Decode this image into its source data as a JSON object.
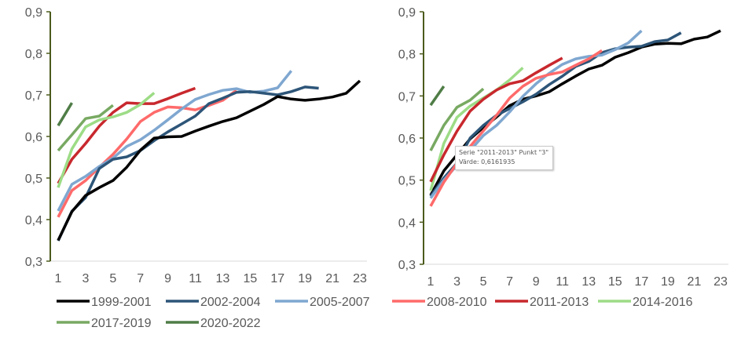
{
  "chart_data": [
    {
      "type": "line",
      "title": "",
      "xlabel": "",
      "ylabel": "",
      "ylim": [
        0.3,
        0.9
      ],
      "xlim": [
        1,
        23
      ],
      "yticks": [
        "0,3",
        "0,4",
        "0,5",
        "0,6",
        "0,7",
        "0,8",
        "0,9"
      ],
      "xticks": [
        "1",
        "3",
        "5",
        "7",
        "9",
        "11",
        "13",
        "15",
        "17",
        "19",
        "21",
        "23"
      ],
      "grid": false,
      "legend_position": "bottom",
      "legend": [
        "1999-2001",
        "2002-2004",
        "2005-2007",
        "2017-2019",
        "2020-2022"
      ],
      "series": [
        {
          "name": "2011-2013",
          "color": "#c8282d",
          "values": [
            0.487,
            0.545,
            0.583,
            0.625,
            0.658,
            0.681,
            0.679,
            0.679,
            0.691,
            0.704,
            0.716
          ]
        },
        {
          "name": "2008-2010",
          "color": "#ff6a6a",
          "values": [
            0.406,
            0.47,
            0.494,
            0.526,
            0.557,
            0.594,
            0.636,
            0.658,
            0.671,
            0.669,
            0.664,
            0.675,
            0.687,
            0.711
          ]
        },
        {
          "name": "2014-2016",
          "color": "#9ddc86",
          "values": [
            0.477,
            0.57,
            0.623,
            0.64,
            0.647,
            0.658,
            0.677,
            0.705
          ]
        },
        {
          "name": "2017-2019",
          "color": "#78a962",
          "values": [
            0.566,
            0.604,
            0.643,
            0.649,
            0.675
          ]
        },
        {
          "name": "2020-2022",
          "color": "#4f7d46",
          "values": [
            0.626,
            0.681
          ]
        },
        {
          "name": "2005-2007",
          "color": "#7fa7d0",
          "values": [
            0.421,
            0.485,
            0.504,
            0.528,
            0.548,
            0.576,
            0.592,
            0.615,
            0.64,
            0.666,
            0.689,
            0.701,
            0.711,
            0.715,
            0.706,
            0.709,
            0.717,
            0.758
          ]
        },
        {
          "name": "2002-2004",
          "color": "#2d5578",
          "values": [
            0.349,
            0.42,
            0.453,
            0.523,
            0.545,
            0.551,
            0.566,
            0.59,
            0.611,
            0.63,
            0.649,
            0.679,
            0.692,
            0.706,
            0.708,
            0.704,
            0.7,
            0.708,
            0.719,
            0.716
          ]
        },
        {
          "name": "1999-2001",
          "color": "#000000",
          "values": [
            0.35,
            0.419,
            0.458,
            0.477,
            0.494,
            0.526,
            0.567,
            0.596,
            0.599,
            0.6,
            0.613,
            0.625,
            0.636,
            0.645,
            0.661,
            0.677,
            0.696,
            0.69,
            0.687,
            0.69,
            0.695,
            0.704,
            0.734
          ]
        }
      ]
    },
    {
      "type": "line",
      "title": "",
      "xlabel": "",
      "ylabel": "",
      "ylim": [
        0.3,
        0.9
      ],
      "xlim": [
        1,
        23
      ],
      "yticks": [
        "0,3",
        "0,4",
        "0,5",
        "0,6",
        "0,7",
        "0,8",
        "0,9"
      ],
      "xticks": [
        "1",
        "3",
        "5",
        "7",
        "9",
        "11",
        "13",
        "15",
        "17",
        "19",
        "21",
        "23"
      ],
      "grid": false,
      "legend_position": "bottom",
      "legend": [
        "2008-2010",
        "2011-2013",
        "2014-2016"
      ],
      "series": [
        {
          "name": "1999-2001",
          "color": "#000000",
          "values": [
            0.464,
            0.522,
            0.56,
            0.598,
            0.625,
            0.65,
            0.677,
            0.692,
            0.7,
            0.71,
            0.729,
            0.747,
            0.764,
            0.773,
            0.792,
            0.803,
            0.816,
            0.823,
            0.825,
            0.824,
            0.835,
            0.84,
            0.855
          ]
        },
        {
          "name": "2002-2004",
          "color": "#2d5578",
          "values": [
            0.462,
            0.505,
            0.54,
            0.6,
            0.63,
            0.654,
            0.67,
            0.686,
            0.704,
            0.727,
            0.747,
            0.77,
            0.782,
            0.803,
            0.812,
            0.816,
            0.818,
            0.829,
            0.833,
            0.85
          ]
        },
        {
          "name": "2005-2007",
          "color": "#7fa7d0",
          "values": [
            0.457,
            0.5,
            0.535,
            0.57,
            0.606,
            0.63,
            0.662,
            0.699,
            0.729,
            0.754,
            0.775,
            0.788,
            0.794,
            0.797,
            0.81,
            0.826,
            0.855
          ]
        },
        {
          "name": "2008-2010",
          "color": "#ff6a6a",
          "values": [
            0.438,
            0.495,
            0.54,
            0.58,
            0.617,
            0.654,
            0.695,
            0.723,
            0.742,
            0.751,
            0.757,
            0.773,
            0.788,
            0.808
          ]
        },
        {
          "name": "2014-2016",
          "color": "#9ddc86",
          "values": [
            0.475,
            0.587,
            0.649,
            0.676,
            0.695,
            0.714,
            0.738,
            0.767
          ]
        },
        {
          "name": "2017-2019",
          "color": "#78a962",
          "values": [
            0.57,
            0.63,
            0.673,
            0.69,
            0.717
          ]
        },
        {
          "name": "2020-2022",
          "color": "#4f7d46",
          "values": [
            0.678,
            0.723
          ]
        },
        {
          "name": "2011-2013",
          "color": "#c8282d",
          "values": [
            0.496,
            0.56,
            0.6161935,
            0.664,
            0.692,
            0.714,
            0.729,
            0.736,
            0.755,
            0.773,
            0.79
          ]
        }
      ]
    }
  ],
  "legend_colors": {
    "1999-2001": "#000000",
    "2002-2004": "#2d5578",
    "2005-2007": "#7fa7d0",
    "2008-2010": "#ff6a6a",
    "2011-2013": "#c8282d",
    "2014-2016": "#9ddc86",
    "2017-2019": "#78a962",
    "2020-2022": "#4f7d46"
  },
  "axis_color": "#4b5a1c",
  "tooltip": {
    "line1": "Serie \"2011-2013\" Punkt \"3\"",
    "line2": "Värde: 0,6161935"
  }
}
